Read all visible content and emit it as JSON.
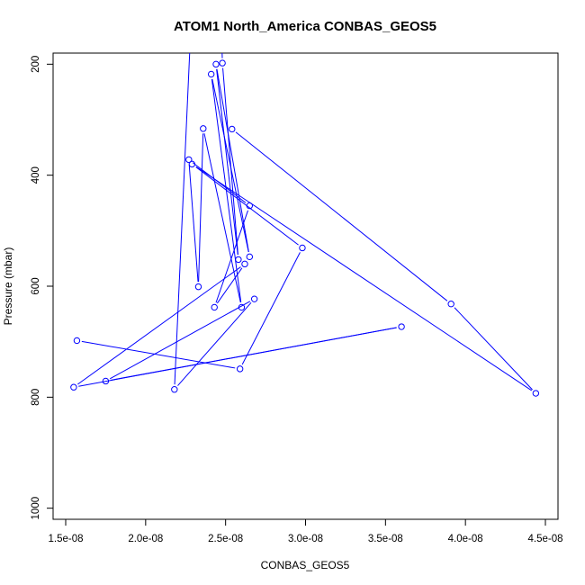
{
  "chart_data": {
    "type": "line",
    "title": "ATOM1 North_America CONBAS_GEOS5",
    "xlabel": "CONBAS_GEOS5",
    "ylabel": "Pressure (mbar)",
    "xlim": [
      1.5e-08,
      4.5e-08
    ],
    "ylim_top": 180,
    "ylim_bottom": 1020,
    "y_reversed": true,
    "x_ticks": [
      {
        "value": 1.5e-08,
        "label": "1.5e-08"
      },
      {
        "value": 2e-08,
        "label": "2.0e-08"
      },
      {
        "value": 2.5e-08,
        "label": "2.5e-08"
      },
      {
        "value": 3e-08,
        "label": "3.0e-08"
      },
      {
        "value": 3.5e-08,
        "label": "3.5e-08"
      },
      {
        "value": 4e-08,
        "label": "4.0e-08"
      },
      {
        "value": 4.5e-08,
        "label": "4.5e-08"
      }
    ],
    "y_ticks": [
      {
        "value": 200,
        "label": "200"
      },
      {
        "value": 400,
        "label": "400"
      },
      {
        "value": 600,
        "label": "600"
      },
      {
        "value": 800,
        "label": "800"
      },
      {
        "value": 1000,
        "label": "1000"
      }
    ],
    "color": "#0000ff",
    "grid": false,
    "legend": "none",
    "series": [
      {
        "points": [
          {
            "x": 2.47e-08,
            "y": 90
          },
          {
            "x": 2.48e-08,
            "y": 198
          },
          {
            "x": 2.58e-08,
            "y": 552
          },
          {
            "x": 2.44e-08,
            "y": 200
          },
          {
            "x": 2.65e-08,
            "y": 547
          },
          {
            "x": 2.41e-08,
            "y": 218
          },
          {
            "x": 2.6e-08,
            "y": 638
          },
          {
            "x": 2.36e-08,
            "y": 316
          },
          {
            "x": 2.33e-08,
            "y": 601
          },
          {
            "x": 2.27e-08,
            "y": 372
          },
          {
            "x": 2.65e-08,
            "y": 455
          },
          {
            "x": 2.43e-08,
            "y": 638
          },
          {
            "x": 2.62e-08,
            "y": 560
          },
          {
            "x": 1.55e-08,
            "y": 782
          },
          {
            "x": 3.6e-08,
            "y": 673
          },
          {
            "x": 1.75e-08,
            "y": 771
          },
          {
            "x": 2.68e-08,
            "y": 623
          },
          {
            "x": 2.18e-08,
            "y": 786
          },
          {
            "x": 2.28e-08,
            "y": 150
          }
        ]
      },
      {
        "points": [
          {
            "x": 2.54e-08,
            "y": 317
          },
          {
            "x": 3.91e-08,
            "y": 632
          },
          {
            "x": 4.44e-08,
            "y": 793
          },
          {
            "x": 2.29e-08,
            "y": 380
          },
          {
            "x": 2.98e-08,
            "y": 531
          },
          {
            "x": 2.59e-08,
            "y": 749
          },
          {
            "x": 1.57e-08,
            "y": 698
          }
        ]
      }
    ]
  }
}
